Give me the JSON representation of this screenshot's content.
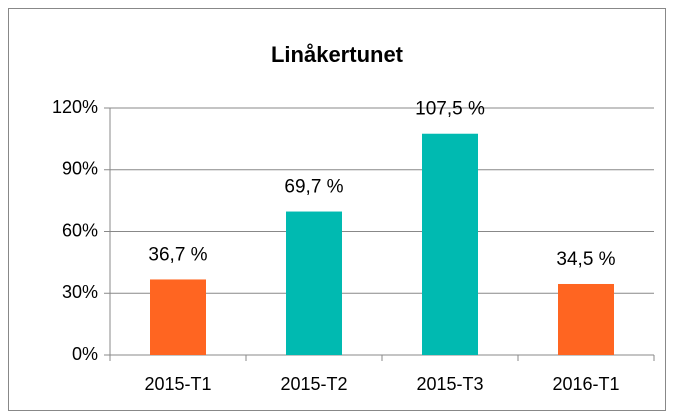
{
  "chart_data": {
    "type": "bar",
    "title": "Linåkertunet",
    "categories": [
      "2015-T1",
      "2015-T2",
      "2015-T3",
      "2016-T1"
    ],
    "values": [
      36.7,
      69.7,
      107.5,
      34.5
    ],
    "value_labels": [
      "36,7 %",
      "69,7 %",
      "107,5 %",
      "34,5 %"
    ],
    "colors": [
      "#ff6521",
      "#00bab1",
      "#00bab1",
      "#ff6521"
    ],
    "ylim": [
      0,
      120
    ],
    "yticks": [
      {
        "value": 0,
        "label": "0%"
      },
      {
        "value": 30,
        "label": "30%"
      },
      {
        "value": 60,
        "label": "60%"
      },
      {
        "value": 90,
        "label": "90%"
      },
      {
        "value": 120,
        "label": "120%"
      }
    ],
    "grid": true
  }
}
